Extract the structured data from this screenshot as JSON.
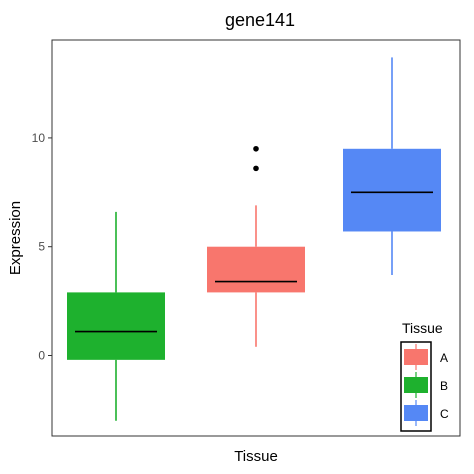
{
  "chart_data": {
    "type": "boxplot",
    "title": "gene141",
    "xlabel": "Tissue",
    "ylabel": "Expression",
    "ylim": [
      -3.7,
      14.5
    ],
    "yticks": [
      0,
      5,
      10
    ],
    "grid": false,
    "legend": {
      "title": "Tissue",
      "placement": "bottom-right-inside",
      "entries": [
        {
          "name": "A",
          "color": "#F8766D"
        },
        {
          "name": "B",
          "color": "#1EB12E"
        },
        {
          "name": "C",
          "color": "#5588F5"
        }
      ]
    },
    "series": [
      {
        "name": "B",
        "color": "#1EB12E",
        "whisker_low": -3.0,
        "q1": -0.2,
        "median": 1.1,
        "q3": 2.9,
        "whisker_high": 6.6,
        "outliers": []
      },
      {
        "name": "A",
        "color": "#F8766D",
        "whisker_low": 0.4,
        "q1": 2.9,
        "median": 3.4,
        "q3": 5.0,
        "whisker_high": 6.9,
        "outliers": [
          8.6,
          9.5
        ]
      },
      {
        "name": "C",
        "color": "#5588F5",
        "whisker_low": 3.7,
        "q1": 5.7,
        "median": 7.5,
        "q3": 9.5,
        "whisker_high": 13.7,
        "outliers": []
      }
    ]
  }
}
